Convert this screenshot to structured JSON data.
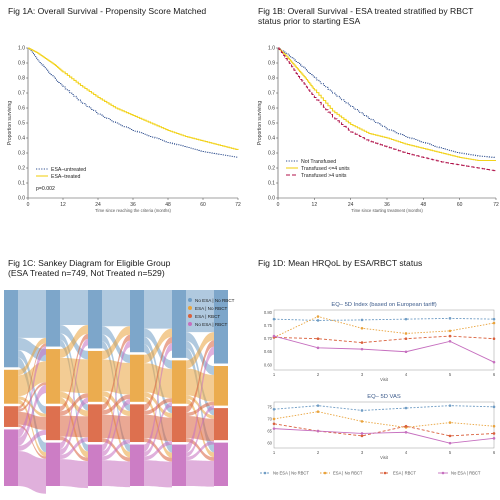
{
  "titles": {
    "a": "Fig 1A: Overall Survival - Propensity Score Matched",
    "b1": "Fig 1B: Overall Survival - ESA treated stratified by RBCT",
    "b2": "status prior to starting ESA",
    "c1": "Fig 1C: Sankey Diagram for Eligible Group",
    "c2": "(ESA Treated n=749, Not Treated n=529)",
    "d": "Fig 1D: Mean HRQoL by ESA/RBCT status"
  },
  "colors": {
    "navy": "#2f4f8f",
    "yellow": "#f2d21b",
    "crimson": "#b0124a",
    "blue": "#6f9cc4",
    "orange": "#e9a33c",
    "red": "#d9603c",
    "purple": "#c66fbf"
  },
  "chart_data": [
    {
      "type": "line",
      "id": "fig1a",
      "title": "Fig 1A: Overall Survival - Propensity Score Matched",
      "xlabel": "Time since reaching the criteria (months)",
      "ylabel": "Proportion surviving",
      "xlim": [
        0,
        72
      ],
      "ylim": [
        0,
        1
      ],
      "xticks": [
        "0",
        "12",
        "24",
        "36",
        "48",
        "60",
        "72"
      ],
      "yticks": [
        "0.0",
        "0.1",
        "0.2",
        "0.3",
        "0.4",
        "0.5",
        "0.6",
        "0.7",
        "0.8",
        "0.9",
        "1.0"
      ],
      "annotation": "p=0.002",
      "series": [
        {
          "name": "ESA–untreated",
          "color": "#2f4f8f",
          "style": "dotted",
          "x": [
            0,
            3,
            6,
            9,
            12,
            18,
            24,
            30,
            36,
            42,
            48,
            54,
            60,
            66,
            72
          ],
          "y": [
            1.0,
            0.93,
            0.86,
            0.8,
            0.74,
            0.64,
            0.56,
            0.5,
            0.45,
            0.41,
            0.37,
            0.34,
            0.31,
            0.29,
            0.27
          ]
        },
        {
          "name": "ESA–treated",
          "color": "#f2d21b",
          "style": "solid",
          "x": [
            0,
            3,
            6,
            9,
            12,
            18,
            24,
            30,
            36,
            42,
            48,
            54,
            60,
            66,
            72
          ],
          "y": [
            1.0,
            0.97,
            0.93,
            0.89,
            0.84,
            0.75,
            0.67,
            0.6,
            0.55,
            0.5,
            0.45,
            0.41,
            0.38,
            0.35,
            0.32
          ]
        }
      ]
    },
    {
      "type": "line",
      "id": "fig1b",
      "title": "Fig 1B: Overall Survival - ESA treated stratified by RBCT status prior to starting ESA",
      "xlabel": "Time since starting treatment (months)",
      "ylabel": "Proportion surviving",
      "xlim": [
        0,
        72
      ],
      "ylim": [
        0,
        1
      ],
      "xticks": [
        "0",
        "12",
        "24",
        "36",
        "48",
        "60",
        "72"
      ],
      "yticks": [
        "0.0",
        "0.1",
        "0.2",
        "0.3",
        "0.4",
        "0.5",
        "0.6",
        "0.7",
        "0.8",
        "0.9",
        "1.0"
      ],
      "series": [
        {
          "name": "Not Transfused",
          "color": "#2f4f8f",
          "style": "dotted",
          "x": [
            0,
            3,
            6,
            9,
            12,
            18,
            24,
            30,
            36,
            42,
            48,
            54,
            60,
            66,
            72
          ],
          "y": [
            1.0,
            0.96,
            0.91,
            0.86,
            0.8,
            0.7,
            0.61,
            0.53,
            0.46,
            0.41,
            0.37,
            0.33,
            0.3,
            0.28,
            0.27
          ]
        },
        {
          "name": "Transfused <=4 units",
          "color": "#f2d21b",
          "style": "solid",
          "x": [
            0,
            3,
            6,
            9,
            12,
            18,
            24,
            30,
            36,
            42,
            48,
            54,
            60,
            66,
            72
          ],
          "y": [
            1.0,
            0.94,
            0.87,
            0.8,
            0.72,
            0.58,
            0.49,
            0.43,
            0.4,
            0.36,
            0.33,
            0.3,
            0.27,
            0.25,
            0.25
          ]
        },
        {
          "name": "Transfused >4 units",
          "color": "#b0124a",
          "style": "dashed",
          "x": [
            0,
            3,
            6,
            9,
            12,
            18,
            24,
            30,
            36,
            42,
            48,
            54,
            60,
            66,
            72
          ],
          "y": [
            1.0,
            0.92,
            0.83,
            0.75,
            0.67,
            0.54,
            0.44,
            0.38,
            0.34,
            0.3,
            0.27,
            0.24,
            0.22,
            0.2,
            0.18
          ]
        }
      ]
    },
    {
      "type": "sankey",
      "id": "fig1c",
      "title": "Fig 1C: Sankey Diagram for Eligible Group (ESA Treated n=749, Not Treated n=529)",
      "legend": [
        "No ESA | No RBCT",
        "ESA | No RBCT",
        "ESA | RBCT",
        "No ESA | RBCT"
      ],
      "legend_position": "top-right",
      "stages": 6,
      "stage_shares": [
        [
          0.41,
          0.18,
          0.11,
          0.3
        ],
        [
          0.3,
          0.29,
          0.18,
          0.23
        ],
        [
          0.31,
          0.27,
          0.2,
          0.22
        ],
        [
          0.33,
          0.25,
          0.2,
          0.22
        ],
        [
          0.36,
          0.23,
          0.19,
          0.22
        ],
        [
          0.39,
          0.21,
          0.17,
          0.23
        ]
      ]
    },
    {
      "type": "line",
      "id": "fig1d_eq5d",
      "title": "EQ– 5D Index (based on European tariff)",
      "xlabel": "Visit",
      "x": [
        1,
        2,
        3,
        4,
        5,
        6
      ],
      "ylim": [
        0.58,
        0.81
      ],
      "yticks": [
        "0.60",
        "0.65",
        "0.70",
        "0.75",
        "0.80"
      ],
      "series": [
        {
          "name": "No ESA | No RBCT",
          "color": "#6f9cc4",
          "values": [
            0.775,
            0.77,
            0.772,
            0.775,
            0.778,
            0.775
          ]
        },
        {
          "name": "ESA | No RBCT",
          "color": "#e9a33c",
          "values": [
            0.705,
            0.785,
            0.74,
            0.72,
            0.73,
            0.76
          ]
        },
        {
          "name": "ESA | RBCT",
          "color": "#d9603c",
          "values": [
            0.705,
            0.7,
            0.685,
            0.7,
            0.71,
            0.7
          ]
        },
        {
          "name": "No ESA | RBCT",
          "color": "#c66fbf",
          "values": [
            0.71,
            0.665,
            0.66,
            0.65,
            0.69,
            0.61
          ]
        }
      ]
    },
    {
      "type": "line",
      "id": "fig1d_vas",
      "title": "EQ– 5D VAS",
      "xlabel": "Visit",
      "x": [
        1,
        2,
        3,
        4,
        5,
        6
      ],
      "ylim": [
        58,
        77
      ],
      "yticks": [
        "60",
        "65",
        "70",
        "75"
      ],
      "series": [
        {
          "name": "No ESA | No RBCT",
          "color": "#6f9cc4",
          "values": [
            74.0,
            75.5,
            73.5,
            74.5,
            75.5,
            75.0
          ]
        },
        {
          "name": "ESA | No RBCT",
          "color": "#e9a33c",
          "values": [
            70.0,
            73.0,
            69.0,
            66.5,
            68.5,
            67.0
          ]
        },
        {
          "name": "ESA | RBCT",
          "color": "#d9603c",
          "values": [
            68.0,
            65.0,
            63.0,
            67.0,
            63.0,
            64.0
          ]
        },
        {
          "name": "No ESA | RBCT",
          "color": "#c66fbf",
          "values": [
            66.0,
            65.0,
            64.0,
            64.5,
            60.0,
            62.0
          ]
        }
      ]
    }
  ]
}
